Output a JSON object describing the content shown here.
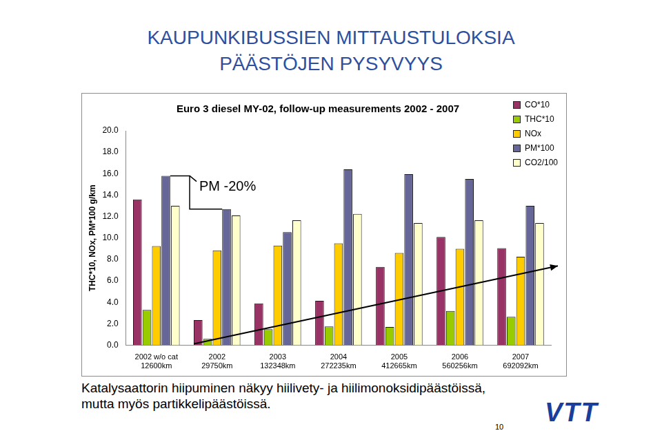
{
  "page": {
    "title": [
      "KAUPUNKIBUSSIEN MITTAUSTULOKSIA",
      "PÄÄSTÖJEN PYSYVYYS"
    ],
    "caption": [
      "Katalysaattorin hiipuminen näkyy hiilivety- ja hiilimonoksidipäästöissä,",
      "mutta myös partikkelipäästöissä."
    ],
    "logo": "VTT",
    "page_number": 10
  },
  "chart_data": {
    "type": "bar",
    "title": "Euro 3 diesel MY-02, follow-up measurements 2002 - 2007",
    "y_label": "THC*10, NOx, PM*100 g/km",
    "annotation": "PM -20%",
    "categories": [
      [
        "2002 w/o cat",
        "12600km"
      ],
      [
        "2002",
        "29750km"
      ],
      [
        "2003",
        "132348km"
      ],
      [
        "2004",
        "272235km"
      ],
      [
        "2005",
        "412665km"
      ],
      [
        "2006",
        "560256km"
      ],
      [
        "2007",
        "692092km"
      ]
    ],
    "series": [
      {
        "name": "CO*10",
        "color": "#993366",
        "values": [
          13.6,
          2.35,
          3.9,
          4.15,
          7.3,
          10.1,
          9.05
        ]
      },
      {
        "name": "THC*10",
        "color": "#99cc00",
        "values": [
          3.3,
          0.6,
          1.5,
          1.75,
          1.7,
          3.2,
          2.65
        ]
      },
      {
        "name": "NOx",
        "color": "#ffcc00",
        "values": [
          9.25,
          8.85,
          9.3,
          9.5,
          8.6,
          9.0,
          8.25
        ]
      },
      {
        "name": "PM*100",
        "color": "#666699",
        "values": [
          15.8,
          12.7,
          10.55,
          16.4,
          15.95,
          15.5,
          13.0
        ]
      },
      {
        "name": "CO2/100",
        "color": "#ffffcc",
        "values": [
          13.0,
          12.1,
          11.65,
          12.25,
          11.4,
          11.65,
          11.4
        ]
      }
    ],
    "ylim": [
      0,
      20
    ],
    "yticks": [
      {
        "value": 0,
        "label": "0.0"
      },
      {
        "value": 2,
        "label": "2.0"
      },
      {
        "value": 4,
        "label": "4.0"
      },
      {
        "value": 6,
        "label": "6.0"
      },
      {
        "value": 8,
        "label": "8.0"
      },
      {
        "value": 10,
        "label": "10.0"
      },
      {
        "value": 12,
        "label": "12.0"
      },
      {
        "value": 14,
        "label": "14.0"
      },
      {
        "value": 16,
        "label": "16.0"
      },
      {
        "value": 18,
        "label": "18.0"
      },
      {
        "value": 20,
        "label": "20.0"
      }
    ],
    "grid": false,
    "legend": "upper right"
  }
}
